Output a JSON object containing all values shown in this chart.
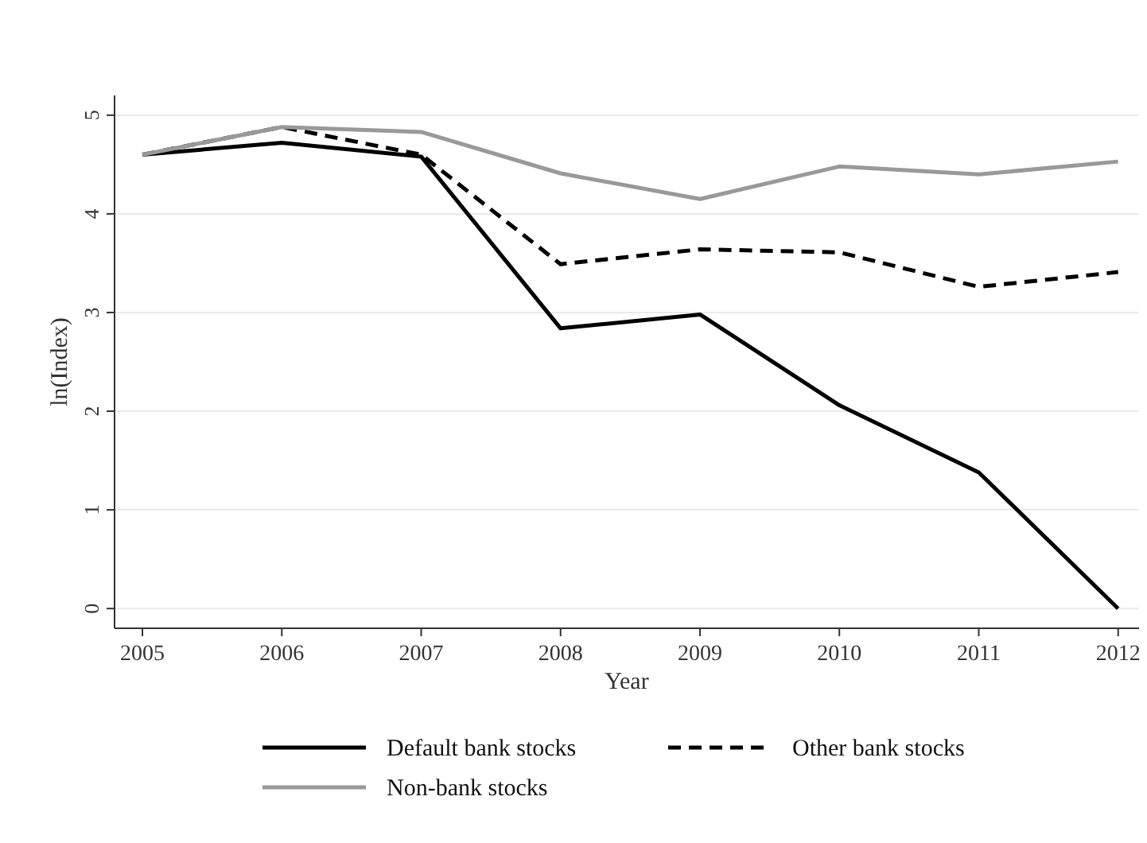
{
  "chart_data": {
    "type": "line",
    "xlabel": "Year",
    "ylabel": "ln(Index)",
    "x": [
      2005,
      2006,
      2007,
      2008,
      2009,
      2010,
      2011,
      2012
    ],
    "xlim": [
      2004.8,
      2012.15
    ],
    "xticks": [
      2005,
      2006,
      2007,
      2008,
      2009,
      2010,
      2011,
      2012
    ],
    "ylim": [
      -0.2,
      5.2
    ],
    "yticks": [
      0,
      1,
      2,
      3,
      4,
      5
    ],
    "grid": "y",
    "legend": "bottom",
    "marker": "none",
    "series": [
      {
        "name": "Default bank stocks",
        "color": "#000000",
        "line_style": "solid",
        "values": [
          4.6,
          4.72,
          4.58,
          2.84,
          2.98,
          2.06,
          1.38,
          0
        ]
      },
      {
        "name": "Other bank stocks",
        "color": "#000000",
        "line_style": "dashed",
        "values": [
          4.6,
          4.88,
          4.6,
          3.49,
          3.64,
          3.61,
          3.26,
          3.41
        ]
      },
      {
        "name": "Non-bank stocks",
        "color": "#999999",
        "line_style": "solid",
        "values": [
          4.6,
          4.88,
          4.83,
          4.41,
          4.15,
          4.48,
          4.4,
          4.53
        ]
      }
    ]
  }
}
